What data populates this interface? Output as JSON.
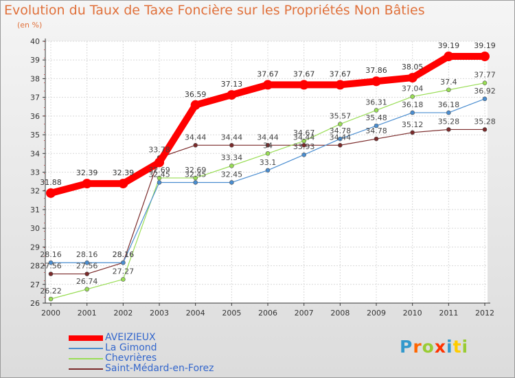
{
  "chart_data": {
    "type": "line",
    "title": "Evolution du Taux de Taxe Foncière sur les Propriétés Non Bâties",
    "subtitle": "(en %)",
    "categories": [
      "2000",
      "2001",
      "2002",
      "2003",
      "2004",
      "2005",
      "2006",
      "2007",
      "2008",
      "2009",
      "2010",
      "2011",
      "2012"
    ],
    "ylim": [
      26,
      40
    ],
    "yticks": [
      "26",
      "27",
      "28",
      "29",
      "30",
      "31",
      "32",
      "33",
      "34",
      "35",
      "36",
      "37",
      "38",
      "39",
      "40"
    ],
    "series": [
      {
        "name": "AVEIZIEUX",
        "color": "#ff0000",
        "values": [
          31.88,
          32.39,
          32.39,
          33.52,
          36.59,
          37.13,
          37.67,
          37.67,
          37.67,
          37.86,
          38.05,
          39.19,
          39.19
        ],
        "labels": [
          "31.88",
          "32.39",
          "32.39",
          "",
          "36.59",
          "37.13",
          "37.67",
          "37.67",
          "37.67",
          "37.86",
          "38.05",
          "39.19",
          "39.19"
        ]
      },
      {
        "name": "La Gimond",
        "color": "#4a8dd0",
        "values": [
          28.16,
          28.16,
          28.16,
          32.45,
          32.45,
          32.45,
          33.1,
          33.93,
          34.78,
          35.48,
          36.18,
          36.18,
          36.92
        ],
        "labels": [
          "28.16",
          "28.16",
          "28.16",
          "32.45",
          "32.45",
          "32.45",
          "33.1",
          "33.93",
          "34.78",
          "35.48",
          "36.18",
          "36.18",
          "36.92"
        ]
      },
      {
        "name": "Chevrières",
        "color": "#99dd55",
        "values": [
          26.22,
          26.74,
          27.27,
          32.69,
          32.69,
          33.34,
          34.0,
          34.67,
          35.57,
          36.31,
          37.04,
          37.4,
          37.77
        ],
        "labels": [
          "26.22",
          "26.74",
          "27.27",
          "32.69",
          "32.69",
          "33.34",
          "34",
          "34.67",
          "35.57",
          "36.31",
          "37.04",
          "37.4",
          "37.77"
        ]
      },
      {
        "name": "Saint-Médard-en-Forez",
        "color": "#7a2a2a",
        "values": [
          27.56,
          27.56,
          28.16,
          33.78,
          34.44,
          34.44,
          34.44,
          34.44,
          34.44,
          34.78,
          35.12,
          35.28,
          35.28
        ],
        "labels": [
          "27.56",
          "27.56",
          "28.16",
          "33.78",
          "34.44",
          "34.44",
          "34.44",
          "34.44",
          "34.44",
          "34.78",
          "35.12",
          "35.28",
          "35.28"
        ]
      }
    ],
    "legend_position": "bottom-left"
  },
  "brand": {
    "letters": [
      "P",
      "r",
      "o",
      "x",
      "i",
      "t",
      "i"
    ],
    "colors": [
      "#3399cc",
      "#ff6600",
      "#99cc33",
      "#ff3300",
      "#3399cc",
      "#ffcc00",
      "#99cc33"
    ]
  }
}
